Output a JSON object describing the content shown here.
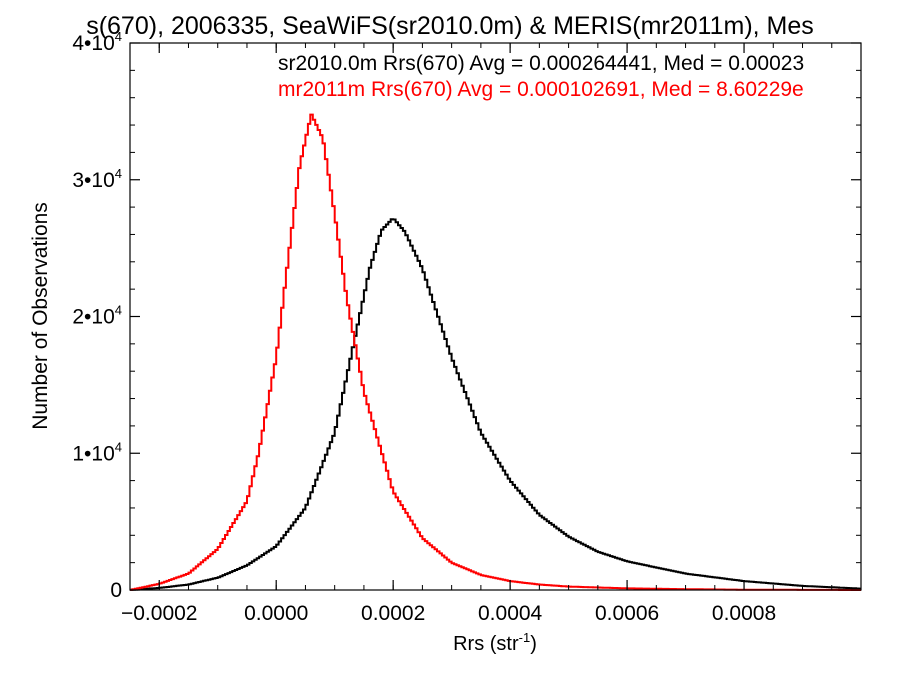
{
  "chart_data": {
    "type": "line",
    "step": true,
    "title": "s(670), 2006335, SeaWiFS(sr2010.0m) & MERIS(mr2011m), Mes",
    "xlabel": "Rrs (str",
    "xlabel_sup": "-1",
    "xlabel_close": ")",
    "ylabel": "Number of Observations",
    "xlim": [
      -0.00025,
      0.001
    ],
    "ylim": [
      0,
      40000
    ],
    "xticks": [
      {
        "value": -0.0002,
        "label": "−0.0002"
      },
      {
        "value": 0.0,
        "label": "0.0000"
      },
      {
        "value": 0.0002,
        "label": "0.0002"
      },
      {
        "value": 0.0004,
        "label": "0.0004"
      },
      {
        "value": 0.0006,
        "label": "0.0006"
      },
      {
        "value": 0.0008,
        "label": "0.0008"
      }
    ],
    "yticks": [
      {
        "value": 0,
        "base": "0",
        "exp": ""
      },
      {
        "value": 10000,
        "base": "1•10",
        "exp": "4"
      },
      {
        "value": 20000,
        "base": "2•10",
        "exp": "4"
      },
      {
        "value": 30000,
        "base": "3•10",
        "exp": "4"
      },
      {
        "value": 40000,
        "base": "4•10",
        "exp": "4"
      }
    ],
    "annotations": [
      {
        "text": "sr2010.0m Rrs(670) Avg = 0.000264441, Med = 0.00023",
        "color": "#000000"
      },
      {
        "text": "mr2011m Rrs(670) Avg = 0.000102691, Med = 8.60229e",
        "color": "#ff0000"
      }
    ],
    "series": [
      {
        "color": "#000000",
        "x": [
          -0.00025,
          -0.0002,
          -0.00015,
          -0.0001,
          -5e-05,
          0.0,
          5e-05,
          0.0001,
          0.00013,
          0.00016,
          0.00018,
          0.0002,
          0.00022,
          0.00025,
          0.0003,
          0.00035,
          0.0004,
          0.00045,
          0.0005,
          0.00055,
          0.0006,
          0.0007,
          0.0008,
          0.0009,
          0.001
        ],
        "y": [
          0,
          150,
          400,
          900,
          1800,
          3200,
          6000,
          11500,
          17500,
          23500,
          26300,
          27200,
          26200,
          23500,
          17000,
          11500,
          8000,
          5500,
          3900,
          2800,
          2100,
          1200,
          650,
          300,
          100
        ]
      },
      {
        "color": "#ff0000",
        "x": [
          -0.00025,
          -0.0002,
          -0.00015,
          -0.0001,
          -5e-05,
          -3e-05,
          0.0,
          2e-05,
          4e-05,
          6e-05,
          8e-05,
          0.0001,
          0.00012,
          0.00015,
          0.0002,
          0.00025,
          0.0003,
          0.00035,
          0.0004,
          0.00045,
          0.0005,
          0.0006,
          0.0007,
          0.0008,
          0.001
        ],
        "y": [
          0,
          450,
          1200,
          3000,
          6500,
          10000,
          17000,
          24000,
          31000,
          34800,
          33000,
          27500,
          21500,
          14500,
          7200,
          3800,
          2000,
          1100,
          650,
          400,
          250,
          120,
          60,
          20,
          0
        ]
      }
    ]
  }
}
